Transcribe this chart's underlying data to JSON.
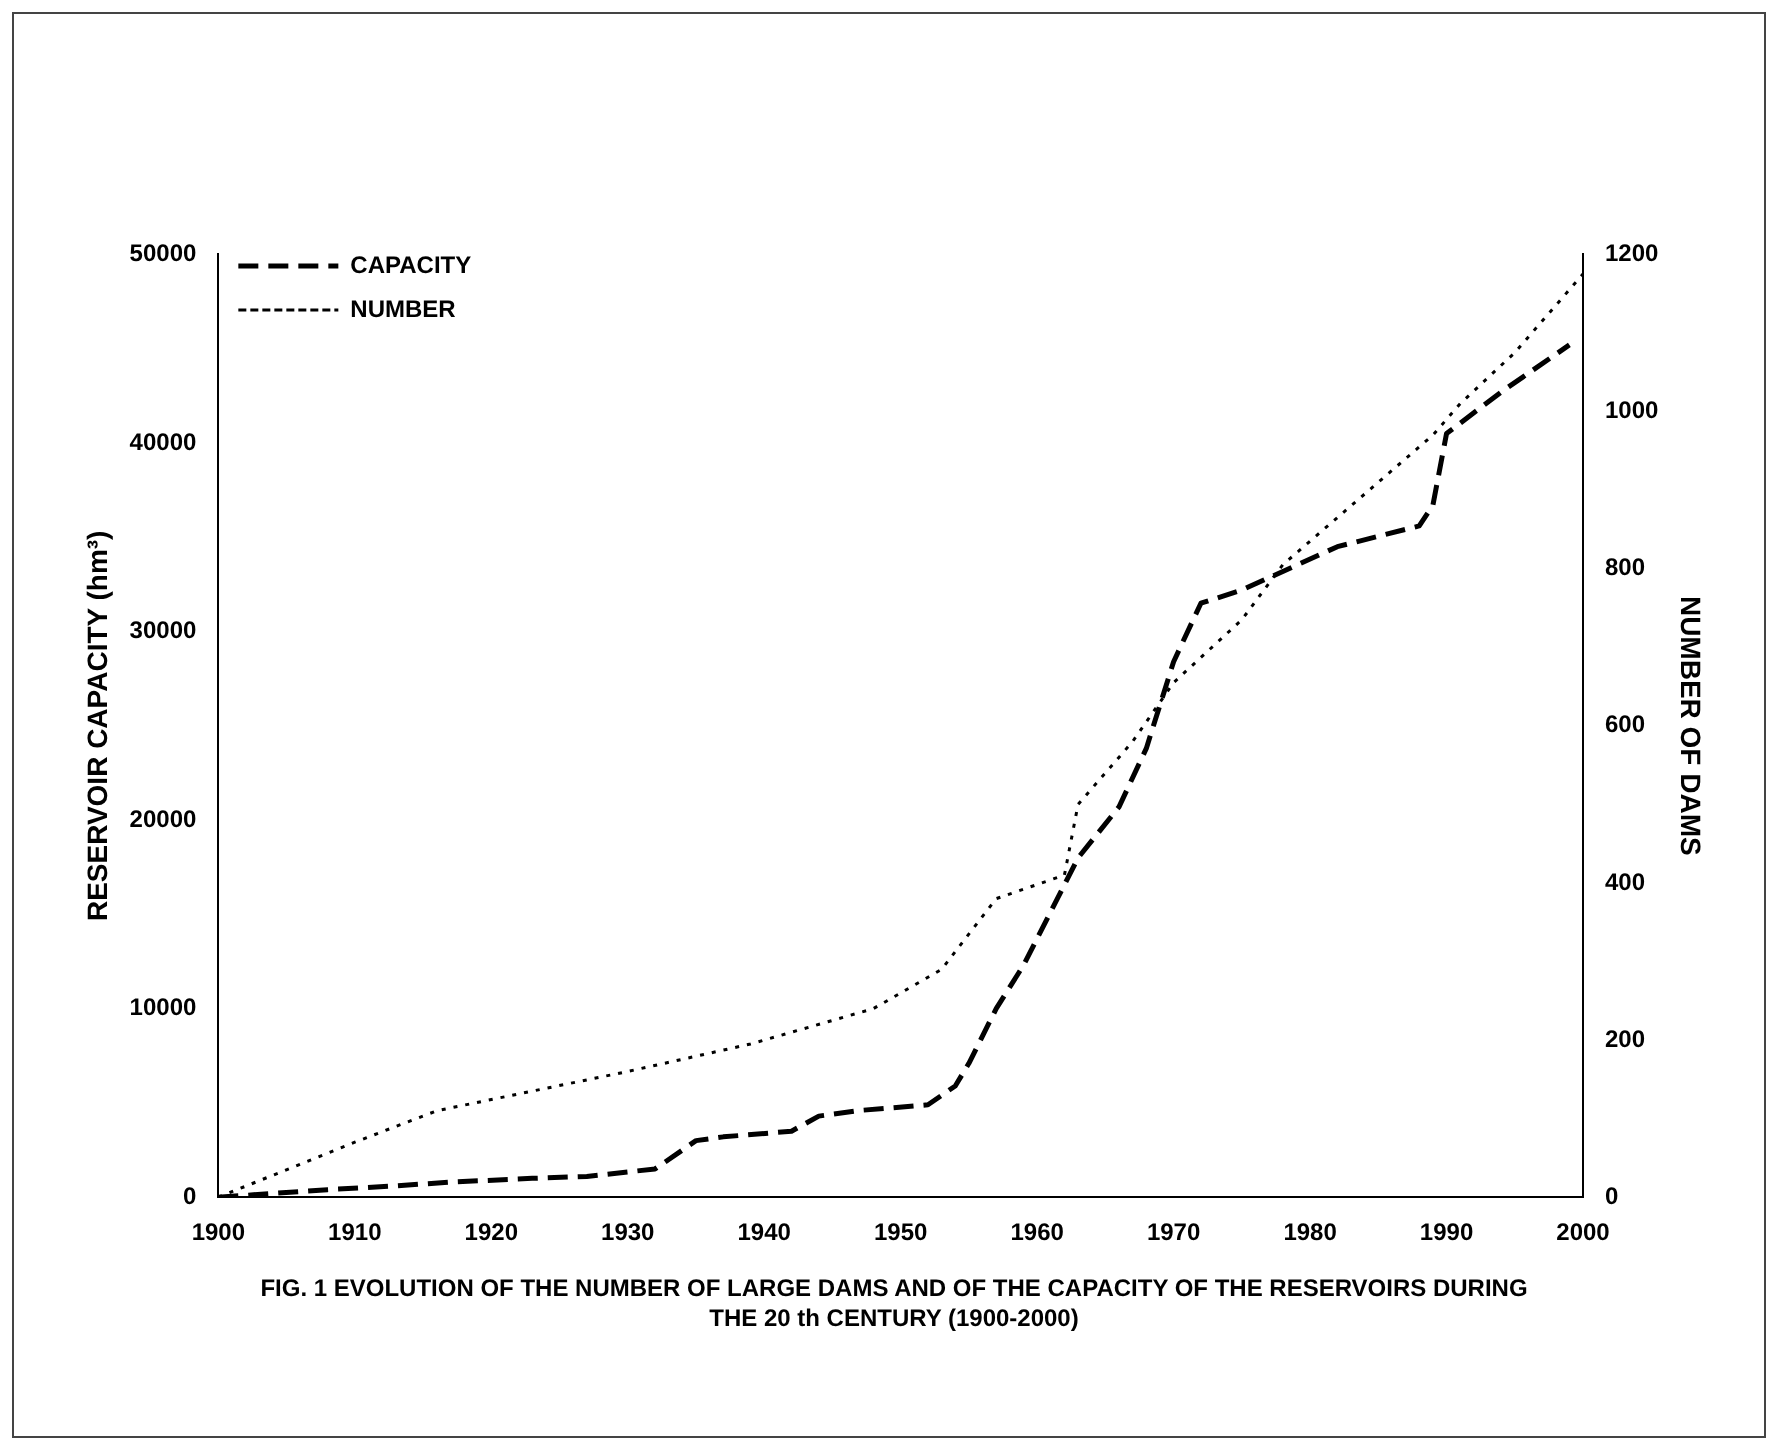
{
  "chart_data": {
    "type": "line",
    "ylabel": "RESERVOIR CAPACITY (hm³)",
    "y2label": "NUMBER OF DAMS",
    "annotations": [
      "FIG. 1 EVOLUTION OF THE NUMBER OF LARGE DAMS AND OF THE CAPACITY OF THE RESERVOIRS DURING THE 20 th CENTURY (1900-2000)"
    ],
    "series": [
      {
        "name": "CAPACITY",
        "color": "#000000",
        "line_style": "dashed",
        "x": [
          1900,
          1908,
          1913,
          1917,
          1923,
          1927,
          1932,
          1935,
          1937,
          1942,
          1944,
          1947,
          1952,
          1954,
          1955,
          1957,
          1959,
          1963,
          1966,
          1968,
          1970,
          1972,
          1975,
          1982,
          1988,
          1989,
          1990,
          1994,
          1999
        ],
        "values": [
          0,
          400,
          600,
          800,
          1000,
          1100,
          1500,
          3000,
          3200,
          3500,
          4300,
          4600,
          4900,
          5900,
          7100,
          10000,
          12300,
          18000,
          20700,
          23800,
          28400,
          31500,
          32200,
          34500,
          35600,
          36700,
          40500,
          42700,
          45200
        ]
      },
      {
        "name": "NUMBER",
        "color": "#000000",
        "line_style": "dotted",
        "axis": "y2",
        "x": [
          1900,
          1910,
          1916,
          1930,
          1939,
          1945,
          1948,
          1953,
          1957,
          1962,
          1963,
          1967,
          1970,
          1975,
          1978,
          1983,
          1989,
          1991,
          1995,
          2000
        ],
        "values": [
          0,
          70,
          110,
          160,
          195,
          225,
          240,
          290,
          380,
          410,
          500,
          580,
          655,
          735,
          805,
          880,
          970,
          1010,
          1075,
          1175
        ]
      }
    ],
    "xlim": [
      1900,
      2000
    ],
    "xticks": [
      1900,
      1910,
      1920,
      1930,
      1940,
      1950,
      1960,
      1970,
      1980,
      1990,
      2000
    ],
    "ylim": [
      0,
      50000
    ],
    "yticks": [
      0,
      10000,
      20000,
      30000,
      40000,
      50000
    ],
    "y2lim": [
      0,
      1200
    ],
    "y2ticks": [
      0,
      200,
      400,
      600,
      800,
      1000,
      1200
    ],
    "grid": false,
    "legend": "top left",
    "marker": "none"
  }
}
